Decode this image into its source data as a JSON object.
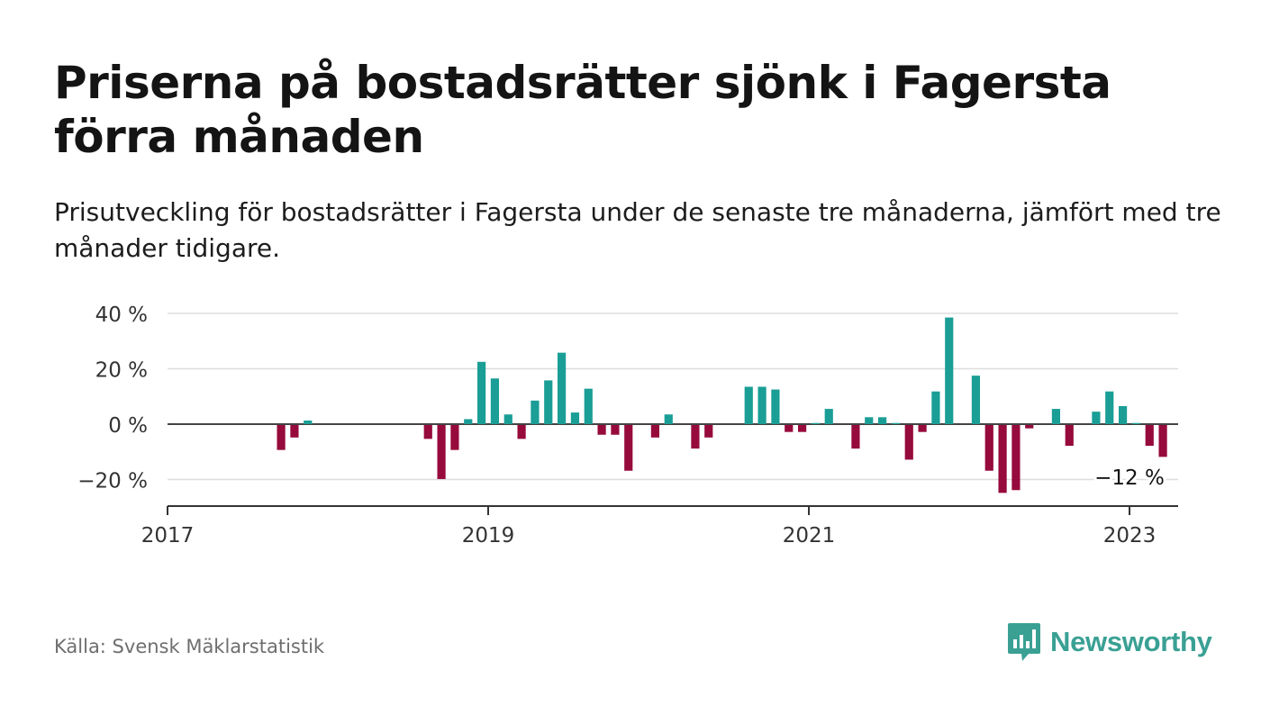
{
  "header": {
    "title": "Priserna på bostadsrätter sjönk i Fagersta förra månaden",
    "subtitle": "Prisutveckling för bostadsrätter i Fagersta under de senaste tre månaderna, jämfört med tre månader tidigare."
  },
  "footer": {
    "source": "Källa: Svensk Mäklarstatistik",
    "logo_text": "Newsworthy"
  },
  "colors": {
    "positive": "#1a9e96",
    "negative": "#960a3c",
    "grid": "#dddddd",
    "axis": "#333333",
    "logo": "#3aa094"
  },
  "chart_data": {
    "type": "bar",
    "title": "",
    "xlabel": "",
    "ylabel": "",
    "ylim": [
      -30,
      40
    ],
    "yticks": [
      40,
      20,
      0,
      -20
    ],
    "ytick_labels": [
      "40 %",
      "20 %",
      "0 %",
      "−20 %"
    ],
    "xticks": [
      "2017",
      "2019",
      "2021",
      "2023"
    ],
    "grid": true,
    "legend": "none",
    "annotation": "−12 %",
    "series": [
      {
        "values": [
          null,
          null,
          null,
          null,
          null,
          null,
          null,
          null,
          -9,
          -4.5,
          1.3,
          null,
          null,
          null,
          null,
          null,
          null,
          null,
          null,
          null,
          null,
          null,
          null,
          null,
          null,
          null,
          null,
          null,
          null,
          null,
          null,
          null,
          null,
          null,
          null,
          null,
          null,
          null,
          null,
          null,
          null,
          null,
          null,
          null,
          null,
          null,
          null,
          null,
          null,
          null,
          null,
          null,
          null,
          -5,
          -19.5,
          -9,
          1.8,
          22.5,
          16.5,
          3.5,
          -5,
          8.5,
          15.8,
          25.8,
          4.2,
          12.8,
          -3.5,
          -3.5,
          -16.5,
          null,
          -4.5,
          3.5,
          null,
          -8.5,
          -4.5,
          null,
          null,
          13.5,
          13.5,
          12.5,
          -2.5,
          -2.5,
          0.4,
          5.5,
          null,
          -8.5,
          2.5,
          2.5,
          0.4,
          -12.5,
          -2.5,
          11.8,
          38.5,
          null,
          17.5,
          -16.5,
          -24.5,
          -23.5,
          -1.2,
          null,
          5.5,
          -7.5,
          null,
          4.5,
          11.8,
          6.5,
          0.4,
          -7.5,
          -11.5
        ],
        "x": [
          "2017-01",
          "2017-02",
          "2017-03",
          "2017-04",
          "2017-05",
          "2017-06",
          "2017-07",
          "2017-08",
          "2017-09",
          "2017-10",
          "2017-11",
          "pad",
          "pad",
          "pad",
          "pad",
          "pad",
          "pad",
          "pad",
          "pad",
          "pad",
          "pad",
          "pad",
          "pad",
          "pad",
          "pad",
          "pad",
          "pad",
          "pad",
          "pad",
          "pad",
          "pad",
          "pad",
          "pad",
          "pad",
          "pad",
          "pad",
          "pad",
          "pad",
          "pad",
          "pad",
          "pad",
          "pad",
          "pad",
          "pad",
          "pad",
          "pad",
          "pad",
          "pad",
          "pad",
          "pad",
          "pad",
          "pad",
          "pad",
          "2018-08",
          "2018-09",
          "2018-10",
          "2018-11",
          "2018-12",
          "2019-01",
          "2019-02",
          "2019-03",
          "2019-04",
          "2019-05",
          "2019-06",
          "2019-07",
          "2019-08",
          "2019-09",
          "2019-10",
          "2019-11",
          "2019-12",
          "2020-01",
          "2020-02",
          "2020-03",
          "2020-04",
          "2020-05",
          "2020-06",
          "2020-07",
          "2020-08",
          "2020-09",
          "2020-10",
          "2020-11",
          "2020-12",
          "2021-01",
          "2021-02",
          "2021-03",
          "2021-04",
          "2021-05",
          "2021-06",
          "2021-07",
          "2021-08",
          "2021-09",
          "2021-10",
          "2021-11",
          "2021-12",
          "2022-01",
          "2022-02",
          "2022-03",
          "2022-04",
          "2022-05",
          "2022-06",
          "2022-07",
          "2022-08",
          "2022-09",
          "2022-10",
          "2022-11",
          "2022-12",
          "2023-01",
          "2023-02",
          "2023-03"
        ]
      }
    ]
  }
}
